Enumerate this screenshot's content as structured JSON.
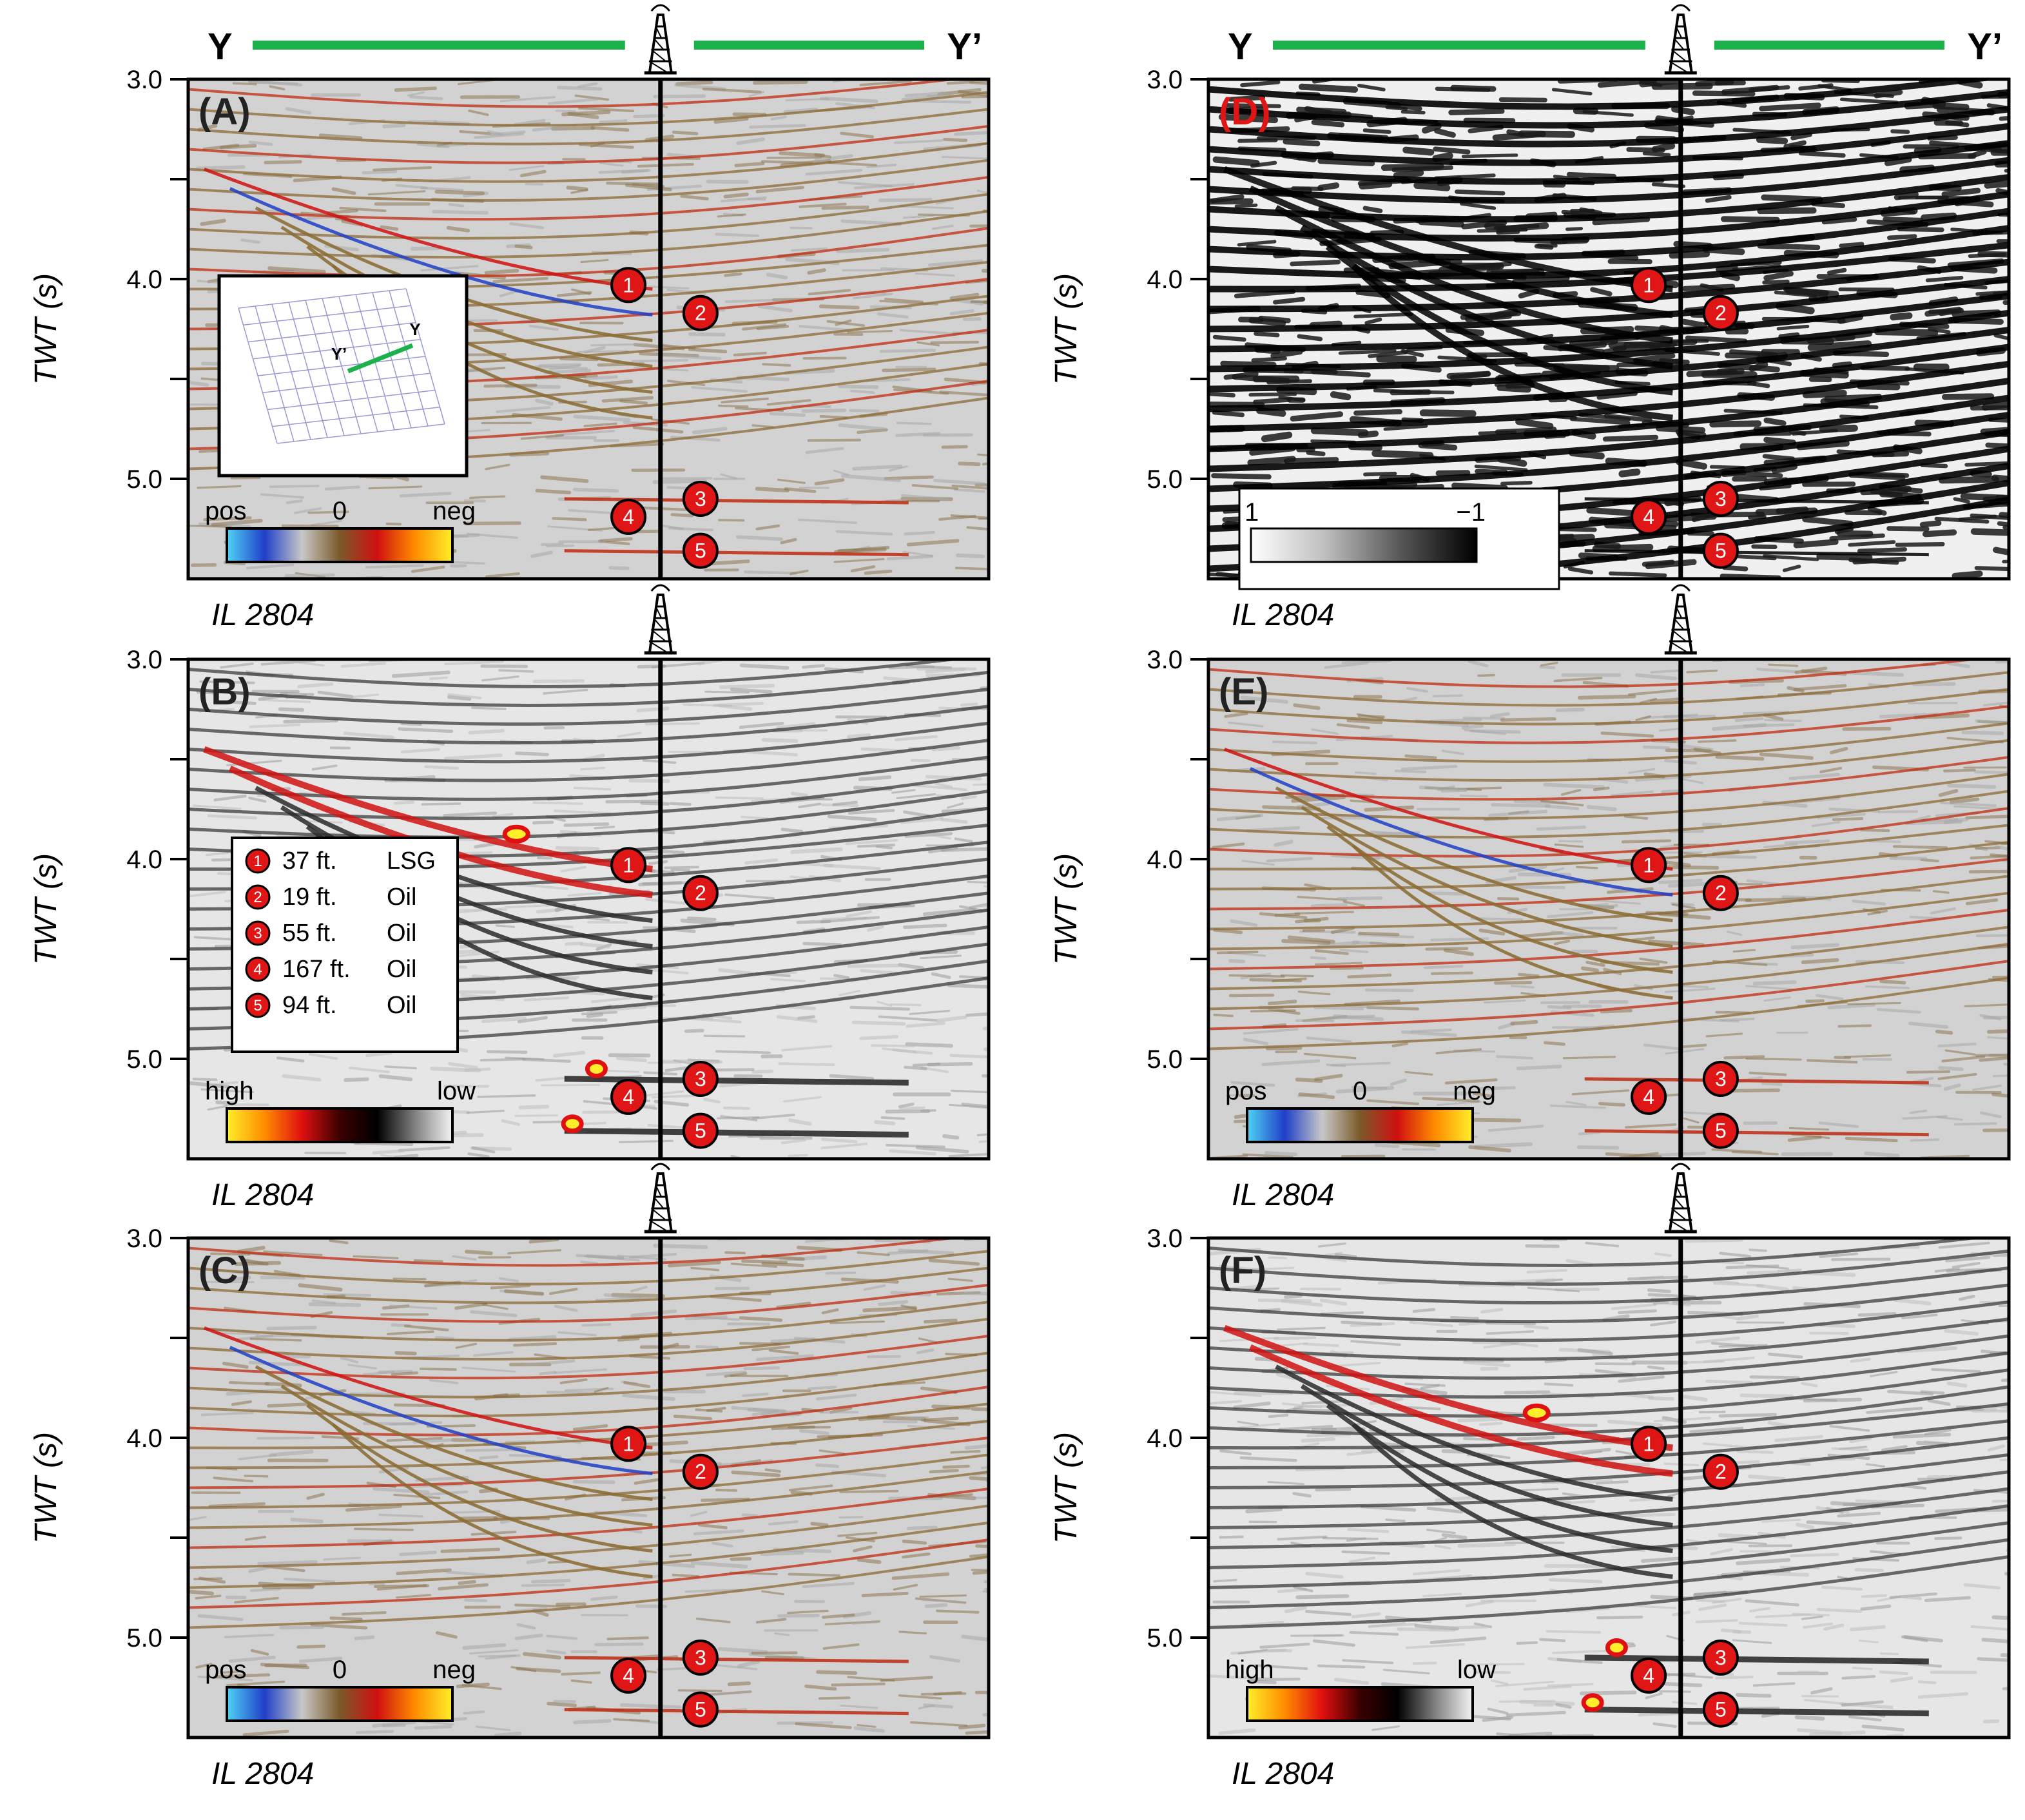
{
  "header": {
    "left_start": "Y",
    "left_end": "Y’",
    "right_start": "Y",
    "right_end": "Y’"
  },
  "axis": {
    "ylabel": "TWT (s)",
    "yticks": [
      "3.0",
      "4.0",
      "5.0"
    ],
    "ylim": [
      3.0,
      5.5
    ]
  },
  "section_label": "IL 2804",
  "panels": [
    {
      "id": "A",
      "label": "(A)",
      "label_color": "#222222",
      "style": "amplitude",
      "colorbar": {
        "left": "pos",
        "mid": "0",
        "right": "neg",
        "colors": [
          "#4fd3f5",
          "#1f3fc7",
          "#c8c8c8",
          "#7a5a2a",
          "#d01010",
          "#ff8c00",
          "#ffef2a"
        ]
      },
      "inset": {
        "marker_start": "Y’",
        "marker_end": "Y"
      }
    },
    {
      "id": "B",
      "label": "(B)",
      "label_color": "#222222",
      "style": "envelope",
      "colorbar": {
        "left": "high",
        "mid": "",
        "right": "low",
        "colors": [
          "#ffef2a",
          "#ff8c00",
          "#e01010",
          "#3a0000",
          "#000000",
          "#808080",
          "#f4f4f4"
        ]
      },
      "legend": [
        {
          "num": "1",
          "thickness": "37 ft.",
          "fluid": "LSG"
        },
        {
          "num": "2",
          "thickness": "19 ft.",
          "fluid": "Oil"
        },
        {
          "num": "3",
          "thickness": "55 ft.",
          "fluid": "Oil"
        },
        {
          "num": "4",
          "thickness": "167 ft.",
          "fluid": "Oil"
        },
        {
          "num": "5",
          "thickness": "94 ft.",
          "fluid": "Oil"
        }
      ]
    },
    {
      "id": "C",
      "label": "(C)",
      "label_color": "#222222",
      "style": "amplitude",
      "colorbar": {
        "left": "pos",
        "mid": "0",
        "right": "neg",
        "colors": [
          "#4fd3f5",
          "#1f3fc7",
          "#c8c8c8",
          "#7a5a2a",
          "#d01010",
          "#ff8c00",
          "#ffef2a"
        ]
      }
    },
    {
      "id": "D",
      "label": "(D)",
      "label_color": "#e01515",
      "style": "binary",
      "colorbar": {
        "left": "1",
        "mid": "",
        "right": "−1",
        "colors": [
          "#ffffff",
          "#bdbdbd",
          "#555555",
          "#000000"
        ]
      }
    },
    {
      "id": "E",
      "label": "(E)",
      "label_color": "#222222",
      "style": "amplitude",
      "colorbar": {
        "left": "pos",
        "mid": "0",
        "right": "neg",
        "colors": [
          "#4fd3f5",
          "#1f3fc7",
          "#c8c8c8",
          "#7a5a2a",
          "#d01010",
          "#ff8c00",
          "#ffef2a"
        ]
      }
    },
    {
      "id": "F",
      "label": "(F)",
      "label_color": "#222222",
      "style": "envelope",
      "colorbar": {
        "left": "high",
        "mid": "",
        "right": "low",
        "colors": [
          "#ffef2a",
          "#ff8c00",
          "#e01010",
          "#3a0000",
          "#000000",
          "#808080",
          "#f4f4f4"
        ]
      }
    }
  ],
  "markers": [
    {
      "num": "1",
      "trace": -0.04,
      "twt": 4.03
    },
    {
      "num": "2",
      "trace": 0.05,
      "twt": 4.17
    },
    {
      "num": "3",
      "trace": 0.05,
      "twt": 5.1
    },
    {
      "num": "4",
      "trace": -0.04,
      "twt": 5.19
    },
    {
      "num": "5",
      "trace": 0.05,
      "twt": 5.36
    }
  ],
  "colors": {
    "profile_line": "#1bb24b",
    "marker_fill": "#e01515",
    "well": "#000000"
  },
  "icons": {
    "well": "oil-derrick-icon"
  }
}
